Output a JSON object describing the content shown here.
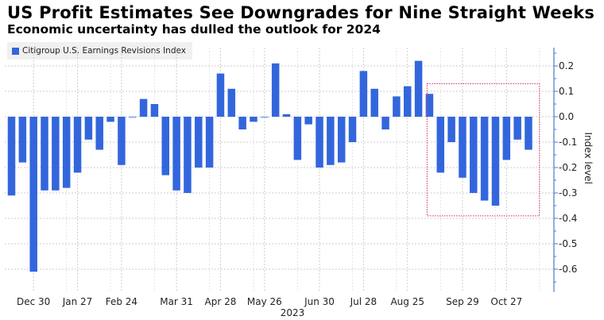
{
  "chart_data": {
    "type": "bar",
    "title": "US Profit Estimates See Downgrades for Nine Straight Weeks",
    "subtitle": "Economic uncertainty has dulled the outlook for 2024",
    "legend": "Citigroup U.S. Earnings Revisions Index",
    "legend_placement": "top-left",
    "ylabel": "Index level",
    "xlabel_year": "2023",
    "ylim": [
      -0.69,
      0.27
    ],
    "yticks": [
      "0.2",
      "0.1",
      "0.0",
      "-0.1",
      "-0.2",
      "-0.3",
      "-0.4",
      "-0.5",
      "-0.6"
    ],
    "xtick_labels": [
      {
        "label": "Dec 30",
        "bar_index": 2
      },
      {
        "label": "Jan 27",
        "bar_index": 6
      },
      {
        "label": "Feb 24",
        "bar_index": 10
      },
      {
        "label": "Mar 31",
        "bar_index": 15
      },
      {
        "label": "Apr 28",
        "bar_index": 19
      },
      {
        "label": "May 26",
        "bar_index": 23
      },
      {
        "label": "Jun 30",
        "bar_index": 28
      },
      {
        "label": "Jul 28",
        "bar_index": 32
      },
      {
        "label": "Aug 25",
        "bar_index": 36
      },
      {
        "label": "Sep 29",
        "bar_index": 41
      },
      {
        "label": "Oct 27",
        "bar_index": 45
      }
    ],
    "values": [
      -0.31,
      -0.18,
      -0.61,
      -0.29,
      -0.29,
      -0.28,
      -0.22,
      -0.09,
      -0.13,
      -0.02,
      -0.19,
      0.0,
      0.07,
      0.05,
      -0.23,
      -0.29,
      -0.3,
      -0.2,
      -0.2,
      0.17,
      0.11,
      -0.05,
      -0.02,
      0.0,
      0.21,
      0.01,
      -0.17,
      -0.03,
      -0.2,
      -0.19,
      -0.18,
      -0.1,
      0.18,
      0.11,
      -0.05,
      0.08,
      0.12,
      0.22,
      0.09,
      -0.22,
      -0.1,
      -0.24,
      -0.3,
      -0.33,
      -0.35,
      -0.17,
      -0.09,
      -0.13
    ],
    "highlight_box": {
      "from_bar_index": 38,
      "to_bar_index": 47,
      "y_top": 0.13,
      "y_bottom": -0.39,
      "color": "#d9456e"
    },
    "grid": true,
    "colors": {
      "bar": "#3366dd",
      "axis": "#4a78d0",
      "grid": "#cccccc"
    }
  }
}
